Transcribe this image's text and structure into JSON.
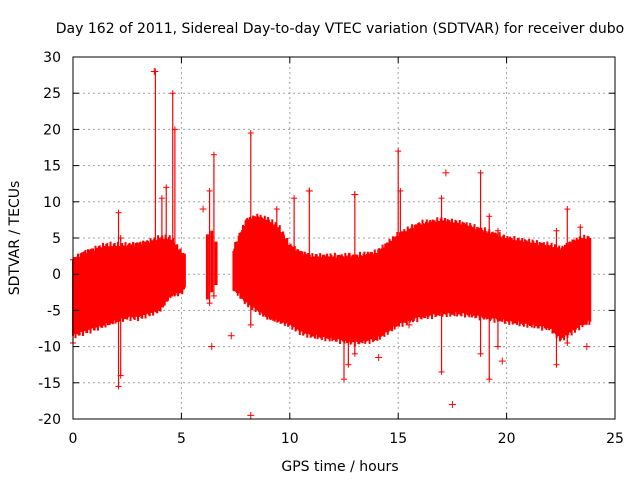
{
  "chart_data": {
    "type": "scatter",
    "title": "Day 162 of 2011, Sidereal Day-to-day VTEC variation (SDTVAR) for receiver dubo",
    "xlabel": "GPS time / hours",
    "ylabel": "SDTVAR / TECUs",
    "xlim": [
      0,
      25
    ],
    "ylim": [
      -20,
      30
    ],
    "xticks": [
      0,
      5,
      10,
      15,
      20,
      25
    ],
    "yticks": [
      -20,
      -15,
      -10,
      -5,
      0,
      5,
      10,
      15,
      20,
      25,
      30
    ],
    "xtick_labels": [
      "0",
      "5",
      "10",
      "15",
      "20",
      "25"
    ],
    "ytick_labels": [
      "-20",
      "-15",
      "-10",
      "-5",
      "0",
      "5",
      "10",
      "15",
      "20",
      "25",
      "30"
    ],
    "grid": true,
    "marker": "+",
    "color": "#ff0000",
    "series": [
      {
        "name": "SDTVAR",
        "bands": [
          [
            0.0,
            -8.5,
            2.0
          ],
          [
            0.5,
            -8.0,
            3.0
          ],
          [
            1.0,
            -7.5,
            3.5
          ],
          [
            1.5,
            -7.0,
            4.0
          ],
          [
            2.0,
            -6.5,
            4.0
          ],
          [
            2.5,
            -6.0,
            4.0
          ],
          [
            3.0,
            -6.0,
            4.2
          ],
          [
            3.5,
            -5.5,
            4.5
          ],
          [
            4.0,
            -5.0,
            5.0
          ],
          [
            4.5,
            -3.0,
            5.0
          ],
          [
            5.0,
            -2.5,
            3.0
          ],
          [
            5.2,
            -2.0,
            2.5
          ],
          [
            7.4,
            -2.0,
            3.5
          ],
          [
            8.0,
            -4.0,
            7.5
          ],
          [
            8.5,
            -5.0,
            8.0
          ],
          [
            9.0,
            -6.0,
            7.5
          ],
          [
            9.5,
            -6.5,
            6.5
          ],
          [
            10.0,
            -7.0,
            4.0
          ],
          [
            10.5,
            -8.0,
            3.0
          ],
          [
            11.0,
            -8.5,
            2.5
          ],
          [
            12.0,
            -9.0,
            2.5
          ],
          [
            13.0,
            -9.5,
            2.5
          ],
          [
            14.0,
            -9.0,
            3.0
          ],
          [
            15.0,
            -7.0,
            5.5
          ],
          [
            16.0,
            -6.0,
            7.0
          ],
          [
            17.0,
            -5.5,
            7.5
          ],
          [
            18.0,
            -5.5,
            7.0
          ],
          [
            19.0,
            -6.0,
            6.0
          ],
          [
            20.0,
            -6.5,
            5.0
          ],
          [
            21.0,
            -7.0,
            4.5
          ],
          [
            22.0,
            -7.5,
            4.0
          ],
          [
            22.5,
            -9.0,
            3.5
          ],
          [
            23.0,
            -8.0,
            4.5
          ],
          [
            23.5,
            -7.0,
            5.0
          ],
          [
            23.9,
            -6.5,
            5.0
          ]
        ],
        "spikes": [
          [
            0.0,
            -9.5,
            2.0
          ],
          [
            2.1,
            -15.5,
            8.5
          ],
          [
            2.2,
            -14.0,
            5.0
          ],
          [
            3.8,
            -3.0,
            28.0
          ],
          [
            4.1,
            -2.0,
            10.5
          ],
          [
            4.3,
            -1.0,
            12.0
          ],
          [
            4.6,
            -1.0,
            25.0
          ],
          [
            4.7,
            -2.0,
            20.0
          ],
          [
            6.3,
            -4.0,
            11.5
          ],
          [
            6.5,
            -3.0,
            16.5
          ],
          [
            8.2,
            -7.0,
            19.5
          ],
          [
            9.4,
            -6.0,
            9.0
          ],
          [
            10.2,
            -6.5,
            10.5
          ],
          [
            10.9,
            -2.0,
            11.5
          ],
          [
            12.5,
            -14.5,
            2.0
          ],
          [
            12.7,
            -12.5,
            2.5
          ],
          [
            13.0,
            -11.0,
            11.0
          ],
          [
            15.0,
            -3.0,
            17.0
          ],
          [
            15.1,
            2.0,
            11.5
          ],
          [
            17.0,
            -13.5,
            10.5
          ],
          [
            18.8,
            -11.0,
            14.0
          ],
          [
            19.2,
            -14.5,
            8.0
          ],
          [
            19.6,
            -10.0,
            6.0
          ],
          [
            22.3,
            -12.5,
            6.0
          ],
          [
            22.8,
            -9.5,
            9.0
          ],
          [
            23.4,
            -3.0,
            6.5
          ]
        ],
        "outliers": [
          [
            3.75,
            28.0
          ],
          [
            6.0,
            9.0
          ],
          [
            6.4,
            -10.0
          ],
          [
            7.3,
            -8.5
          ],
          [
            8.2,
            -19.5
          ],
          [
            10.9,
            11.5
          ],
          [
            13.0,
            11.0
          ],
          [
            14.1,
            -11.5
          ],
          [
            15.5,
            -7.0
          ],
          [
            16.9,
            -0.5
          ],
          [
            17.5,
            -18.0
          ],
          [
            17.2,
            14.0
          ],
          [
            19.8,
            -12.0
          ],
          [
            23.7,
            -10.0
          ]
        ]
      }
    ]
  }
}
